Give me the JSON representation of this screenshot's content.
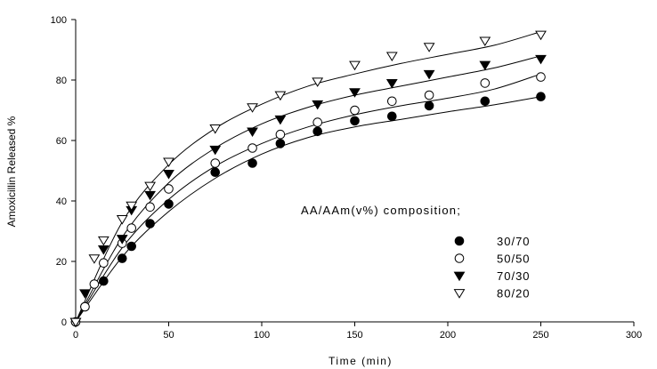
{
  "chart_data": {
    "type": "scatter",
    "title": "",
    "xlabel": "Time (min)",
    "ylabel": "Amoxicillin Released %",
    "xlim": [
      0,
      300
    ],
    "ylim": [
      0,
      100
    ],
    "xticks": [
      0,
      50,
      100,
      150,
      200,
      250,
      300
    ],
    "yticks": [
      0,
      20,
      40,
      60,
      80,
      100
    ],
    "grid": false,
    "legend": {
      "title": "AA/AAm(v%) composition;",
      "position": "lower-right"
    },
    "series": [
      {
        "name": "30/70",
        "marker": "filled-circle",
        "x": [
          0,
          5,
          15,
          25,
          30,
          40,
          50,
          75,
          95,
          110,
          130,
          150,
          170,
          190,
          220,
          250
        ],
        "y": [
          0,
          5,
          13.5,
          21,
          25,
          32.5,
          39,
          49.5,
          52.5,
          59,
          63,
          66.5,
          68,
          71.5,
          73,
          74.5
        ],
        "fit": [
          [
            0,
            0
          ],
          [
            25,
            21.5
          ],
          [
            50,
            36.5
          ],
          [
            75,
            47.5
          ],
          [
            100,
            55.5
          ],
          [
            125,
            61
          ],
          [
            150,
            64.5
          ],
          [
            175,
            67
          ],
          [
            200,
            69.5
          ],
          [
            225,
            71.8
          ],
          [
            250,
            74.5
          ]
        ]
      },
      {
        "name": "50/50",
        "marker": "open-circle",
        "x": [
          0,
          5,
          10,
          15,
          25,
          30,
          40,
          50,
          75,
          95,
          110,
          130,
          150,
          170,
          190,
          220,
          250
        ],
        "y": [
          0,
          5,
          12.5,
          19.5,
          26,
          31,
          38,
          44,
          52.5,
          57.5,
          62,
          66,
          70,
          73,
          75,
          79,
          81
        ],
        "fit": [
          [
            0,
            0
          ],
          [
            25,
            24.5
          ],
          [
            50,
            40.5
          ],
          [
            75,
            51.5
          ],
          [
            100,
            59
          ],
          [
            125,
            64.5
          ],
          [
            150,
            68.5
          ],
          [
            175,
            71.5
          ],
          [
            200,
            74
          ],
          [
            225,
            77
          ],
          [
            250,
            82
          ]
        ]
      },
      {
        "name": "70/30",
        "marker": "filled-triangle-down",
        "x": [
          0,
          5,
          15,
          25,
          30,
          40,
          50,
          75,
          95,
          110,
          130,
          150,
          170,
          190,
          220,
          250
        ],
        "y": [
          0,
          9.5,
          24,
          27.5,
          37,
          42,
          49,
          57,
          63,
          67,
          72,
          76,
          79,
          82,
          85,
          87
        ],
        "fit": [
          [
            0,
            0
          ],
          [
            25,
            28
          ],
          [
            50,
            46
          ],
          [
            75,
            57.5
          ],
          [
            100,
            65.5
          ],
          [
            125,
            71
          ],
          [
            150,
            75
          ],
          [
            175,
            78
          ],
          [
            200,
            81
          ],
          [
            225,
            84
          ],
          [
            250,
            88
          ]
        ]
      },
      {
        "name": "80/20",
        "marker": "open-triangle-down",
        "x": [
          0,
          10,
          15,
          25,
          30,
          40,
          50,
          75,
          95,
          110,
          130,
          150,
          170,
          190,
          220,
          250
        ],
        "y": [
          0,
          21,
          27,
          34,
          38.5,
          45,
          53,
          64,
          71,
          75,
          79.5,
          85,
          88,
          91,
          93,
          95
        ],
        "fit": [
          [
            0,
            0
          ],
          [
            25,
            33
          ],
          [
            50,
            52
          ],
          [
            75,
            64
          ],
          [
            100,
            72
          ],
          [
            125,
            78
          ],
          [
            150,
            82
          ],
          [
            175,
            85.5
          ],
          [
            200,
            88.5
          ],
          [
            225,
            91.5
          ],
          [
            250,
            96
          ]
        ]
      }
    ]
  }
}
